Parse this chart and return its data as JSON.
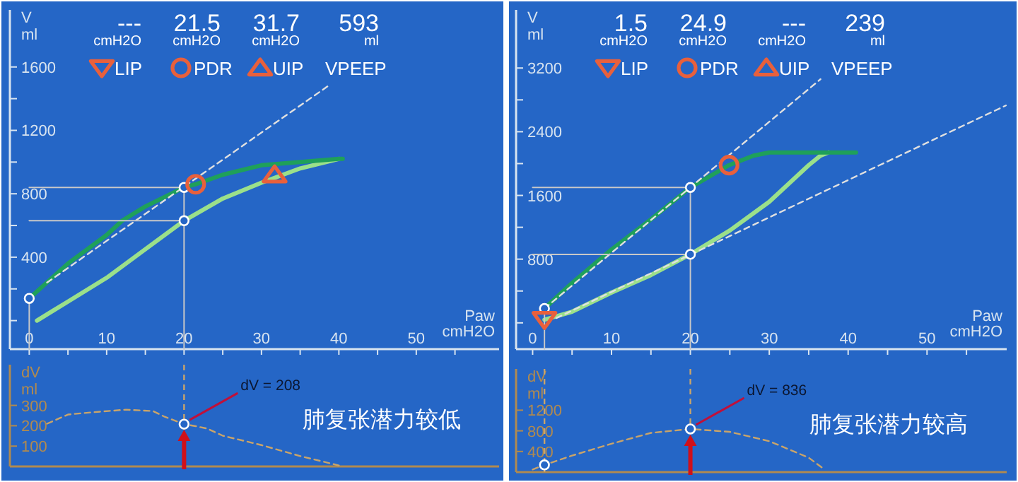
{
  "chart_data": [
    {
      "type": "line",
      "xlim": [
        -2.5,
        60.7
      ],
      "ylim": [
        -180,
        1960
      ],
      "xticks": [
        0,
        {
          "value": 5,
          "label": null
        },
        10,
        {
          "value": 15,
          "label": null
        },
        20,
        {
          "value": 25,
          "label": null
        },
        30,
        {
          "value": 35,
          "label": null
        },
        40,
        {
          "value": 45,
          "label": null
        },
        50,
        {
          "value": 55,
          "label": null
        }
      ],
      "yticks": [
        {
          "value": 0,
          "label": null
        },
        {
          "value": 200,
          "label": null
        },
        400,
        {
          "value": 600,
          "label": null
        },
        800,
        {
          "value": 1000,
          "label": null
        },
        1200,
        {
          "value": 1400,
          "label": null
        },
        1600
      ],
      "xlabel": "Paw\ncmH2O",
      "ylabel": "V\nml",
      "legend": "top",
      "series": [
        {
          "type": "line",
          "color": "#9be08a",
          "x": [
            1,
            3,
            5,
            10,
            15,
            20,
            25,
            30,
            35,
            40
          ],
          "values": [
            0,
            60,
            120,
            270,
            450,
            630,
            770,
            870,
            960,
            1020
          ]
        },
        {
          "type": "line",
          "color": "#1fa05a",
          "x": [
            0,
            5,
            10,
            12,
            15,
            20,
            21.5,
            25,
            30,
            35,
            40,
            40.5
          ],
          "values": [
            140,
            360,
            540,
            630,
            720,
            840,
            860,
            920,
            980,
            1000,
            1020,
            1020
          ]
        },
        {
          "type": "line",
          "color": "#e0e0e0",
          "line_style": "dashed",
          "x": [
            2.3,
            38.9
          ],
          "values": [
            240,
            1490
          ]
        },
        {
          "type": "line",
          "color": "#c8c8c8",
          "x": [
            0,
            20
          ],
          "values": [
            840,
            840
          ]
        },
        {
          "type": "line",
          "color": "#c8c8c8",
          "x": [
            0,
            20
          ],
          "values": [
            630,
            630
          ]
        },
        {
          "type": "line",
          "color": "#c8c8c8",
          "x": [
            20,
            20
          ],
          "values": [
            -180,
            840
          ]
        },
        {
          "type": "line",
          "color": "#c8c8c8",
          "x": [
            0,
            0
          ],
          "values": [
            -180,
            140
          ]
        },
        {
          "type": "scatter",
          "color": "#ffffff",
          "marker": "circle",
          "x": [
            0,
            20,
            20
          ],
          "values": [
            140,
            840,
            630
          ]
        },
        {
          "name": "LIP",
          "type": "scatter",
          "color": "#e8603c",
          "marker": "triangle_down"
        },
        {
          "name": "PDR",
          "type": "scatter",
          "color": "#e8603c",
          "marker": "circle",
          "x": [
            21.5
          ],
          "values": [
            860
          ]
        },
        {
          "name": "UIP",
          "type": "scatter",
          "color": "#e8603c",
          "marker": "triangle",
          "x": [
            31.7
          ],
          "values": [
            920
          ]
        }
      ],
      "annotations": [
        "---",
        "cmH2O",
        "21.5",
        "cmH2O",
        "31.7",
        "cmH2O",
        "593",
        "ml",
        "VPEEP"
      ]
    },
    {
      "type": "line",
      "xlim": [
        -2.5,
        60.7
      ],
      "ylim": [
        0,
        500
      ],
      "yticks": [
        100,
        200,
        300
      ],
      "ylabel": "dV\nml",
      "tick_labels": "y",
      "series": [
        {
          "type": "line",
          "color": "#c9a46a",
          "line_style": "dashed",
          "x": [
            2.3,
            5,
            8.4,
            12.5,
            16,
            17.5,
            20,
            21.5,
            23,
            25,
            30,
            35,
            40
          ],
          "values": [
            210,
            255,
            267,
            279,
            272,
            244,
            208,
            198,
            186,
            151,
            105,
            51,
            5
          ]
        },
        {
          "type": "scatter",
          "color": "#ffffff",
          "marker": "circle",
          "x": [
            20
          ],
          "values": [
            208
          ]
        }
      ],
      "ref_lines": [
        {
          "axis": "x",
          "value": 20,
          "color": "#c9a46a",
          "line_style": "dashed"
        }
      ],
      "annotations": [
        {
          "text": "dV = 208",
          "x": 20,
          "y": 208
        },
        "肺复张潜力较低"
      ]
    },
    {
      "type": "line",
      "xlim": [
        -2.1,
        60.1
      ],
      "ylim": [
        -330,
        3930
      ],
      "xticks": [
        0,
        {
          "value": 5,
          "label": null
        },
        10,
        {
          "value": 15,
          "label": null
        },
        20,
        {
          "value": 25,
          "label": null
        },
        30,
        {
          "value": 35,
          "label": null
        },
        40,
        {
          "value": 45,
          "label": null
        },
        50,
        {
          "value": 55,
          "label": null
        }
      ],
      "yticks": [
        {
          "value": 0,
          "label": null
        },
        {
          "value": 400,
          "label": null
        },
        800,
        {
          "value": 1200,
          "label": null
        },
        1600,
        {
          "value": 2000,
          "label": null
        },
        2400,
        {
          "value": 2800,
          "label": null
        },
        3200
      ],
      "xlabel": "Paw\ncmH2O",
      "ylabel": "V\nml",
      "legend": "top",
      "series": [
        {
          "type": "line",
          "color": "#9be08a",
          "x": [
            1.5,
            5,
            10,
            15,
            20,
            25,
            30,
            35,
            36.5,
            37.5
          ],
          "values": [
            40,
            140,
            380,
            600,
            860,
            1160,
            1520,
            1980,
            2100,
            2140
          ]
        },
        {
          "type": "line",
          "color": "#1fa05a",
          "x": [
            1.5,
            5,
            10,
            15,
            20,
            24.9,
            28,
            30,
            35,
            41
          ],
          "values": [
            180,
            500,
            920,
            1300,
            1700,
            1980,
            2100,
            2140,
            2140,
            2140
          ]
        },
        {
          "type": "line",
          "color": "#e0e0e0",
          "line_style": "dashed",
          "x": [
            1.5,
            36.5
          ],
          "values": [
            180,
            3060
          ]
        },
        {
          "type": "line",
          "color": "#e0e0e0",
          "line_style": "dashed",
          "x": [
            3,
            60
          ],
          "values": [
            60,
            2730
          ]
        },
        {
          "type": "line",
          "color": "#c8c8c8",
          "x": [
            0,
            20
          ],
          "values": [
            1700,
            1700
          ]
        },
        {
          "type": "line",
          "color": "#c8c8c8",
          "x": [
            0,
            20
          ],
          "values": [
            860,
            860
          ]
        },
        {
          "type": "line",
          "color": "#c8c8c8",
          "x": [
            20,
            20
          ],
          "values": [
            -330,
            1700
          ]
        },
        {
          "type": "line",
          "color": "#c8c8c8",
          "x": [
            1.5,
            1.5
          ],
          "values": [
            -330,
            180
          ]
        },
        {
          "type": "scatter",
          "color": "#ffffff",
          "marker": "circle",
          "x": [
            1.5,
            20,
            20
          ],
          "values": [
            180,
            1700,
            860
          ]
        },
        {
          "name": "LIP",
          "type": "scatter",
          "color": "#e8603c",
          "marker": "triangle_down",
          "x": [
            1.5
          ],
          "values": [
            40
          ]
        },
        {
          "name": "PDR",
          "type": "scatter",
          "color": "#e8603c",
          "marker": "circle",
          "x": [
            24.9
          ],
          "values": [
            1980
          ]
        },
        {
          "name": "UIP",
          "type": "scatter",
          "color": "#e8603c",
          "marker": "triangle"
        }
      ],
      "annotations": [
        "1.5",
        "cmH2O",
        "24.9",
        "cmH2O",
        "---",
        "cmH2O",
        "239",
        "ml",
        "VPEEP"
      ]
    },
    {
      "type": "line",
      "xlim": [
        -2.1,
        60.1
      ],
      "ylim": [
        0,
        2000
      ],
      "yticks": [
        400,
        800,
        1200
      ],
      "ylabel": "dV\nml",
      "tick_labels": "y",
      "series": [
        {
          "type": "line",
          "color": "#c9a46a",
          "line_style": "dashed",
          "x": [
            0,
            1.5,
            5,
            10,
            15,
            20,
            25,
            30,
            35,
            37
          ],
          "values": [
            50,
            140,
            320,
            550,
            760,
            836,
            780,
            600,
            280,
            50
          ]
        },
        {
          "type": "scatter",
          "color": "#ffffff",
          "marker": "circle",
          "x": [
            1.5,
            20
          ],
          "values": [
            140,
            836
          ]
        }
      ],
      "ref_lines": [
        {
          "axis": "x",
          "value": 1.5,
          "color": "#c9a46a",
          "line_style": "dashed"
        },
        {
          "axis": "x",
          "value": 20,
          "color": "#c9a46a",
          "line_style": "dashed"
        }
      ],
      "annotations": [
        {
          "text": "dV = 836",
          "x": 20,
          "y": 836
        },
        "肺复张潜力较高"
      ]
    }
  ]
}
